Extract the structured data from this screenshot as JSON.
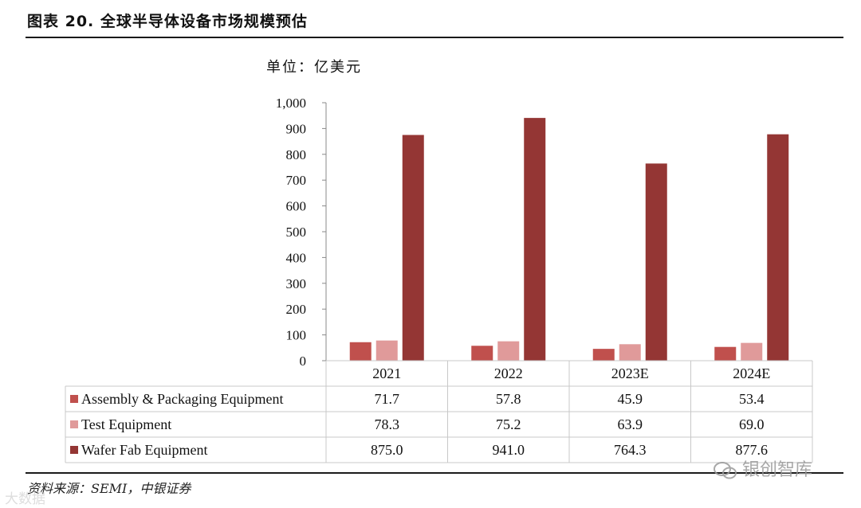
{
  "figure": {
    "title": "图表 20. 全球半导体设备市场规模预估",
    "unit": "单位：亿美元",
    "source": "资料来源：SEMI，中银证券",
    "watermark": "银创智库",
    "watermark_secondary": "大数据"
  },
  "chart_data": {
    "type": "bar",
    "title": "图表 20. 全球半导体设备市场规模预估",
    "ylabel": "单位：亿美元",
    "xlabel": "",
    "ylim": [
      0,
      1000
    ],
    "y_ticks": [
      "0",
      "100",
      "200",
      "300",
      "400",
      "500",
      "600",
      "700",
      "800",
      "900",
      "1,000"
    ],
    "categories": [
      "2021",
      "2022",
      "2023E",
      "2024E"
    ],
    "legend_placement": "bottom data table",
    "grid": false,
    "series": [
      {
        "name": "Assembly & Packaging Equipment",
        "color": "#c0504d",
        "values": [
          71.7,
          57.8,
          45.9,
          53.4
        ],
        "labels": [
          "71.7",
          "57.8",
          "45.9",
          "53.4"
        ]
      },
      {
        "name": "Test Equipment",
        "color": "#e09a9a",
        "values": [
          78.3,
          75.2,
          63.9,
          69.0
        ],
        "labels": [
          "78.3",
          "75.2",
          "63.9",
          "69.0"
        ]
      },
      {
        "name": "Wafer Fab Equipment",
        "color": "#943634",
        "values": [
          875.0,
          941.0,
          764.3,
          877.6
        ],
        "labels": [
          "875.0",
          "941.0",
          "764.3",
          "877.6"
        ]
      }
    ]
  }
}
